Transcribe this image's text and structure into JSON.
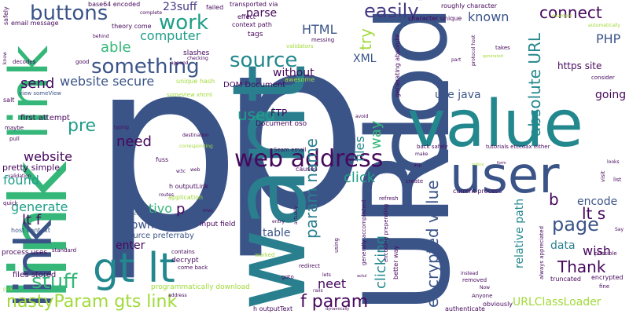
{
  "words": {
    "p": "p",
    "want": "want",
    "code": "code",
    "link": "link",
    "url": "URL",
    "value": "value",
    "user": "user",
    "gt_lt": "gt lt",
    "web_address": "web address",
    "source": "source",
    "something": "something",
    "buttons": "buttons",
    "work": "work",
    "easily": "easily",
    "connect": "connect",
    "stuff": "stuff",
    "able": "able",
    "computer": "computer",
    "suff23": "23suff",
    "absolute_url": "absolute URL",
    "encrypted_value": "encrypted value",
    "param_name": "param name",
    "clicking": "clicking",
    "page": "page",
    "thank": "Thank",
    "nasty_param": "nastyParam gts link",
    "f_param": "f param",
    "html": "HTML",
    "php": "PHP",
    "xml": "XML",
    "try": "try",
    "known": "known",
    "website_secure": "website secure",
    "send": "send",
    "pre": "pre",
    "need": "need",
    "website": "website",
    "found": "found",
    "generate": "generate",
    "lt_f": "lt f",
    "used": "used",
    "ftp": "FTP",
    "click": "click",
    "way": "way",
    "files": "files",
    "info": "info",
    "tivo": "tivo",
    "download": "download",
    "table": "table",
    "enter": "enter",
    "neet": "neet",
    "b": "b",
    "encode": "encode",
    "lt_s": "lt s",
    "wish": "wish",
    "data": "data",
    "relative_path": "relative path",
    "urlclassloader": "URLClassLoader",
    "going": "going",
    "use_java": "use java",
    "without": "without",
    "parse": "parse",
    "https_site": "https site",
    "pretty_simple": "pretty simple",
    "source_preferraby": "source preferraby",
    "first_attempt": "first attempt",
    "files_stored": "files stored",
    "process_uses": "process uses",
    "host_context": "host context",
    "programmatically_download": "programmatically download",
    "input_field": "input field",
    "decrypt": "decrypt",
    "dom_document": "DOM Document",
    "document_oso": "Document oso",
    "slashes": "slashes",
    "tags": "tags",
    "base64_encoded": "base64 encoded",
    "transported_via": "transported via",
    "failed": "failed",
    "roughly_character": "roughly character",
    "character_unique": "character unique",
    "email_message": "email message",
    "theory_come": "theory come",
    "context_path": "context path",
    "generating_absolute": "generating absolute",
    "unique_hash": "unique hash",
    "awesome": "awesome",
    "effect": "effect",
    "validators": "validators",
    "messing": "messing",
    "view_someview": "view someView",
    "someview_xhtml": "someView xhtml",
    "h_outputlink": "h outputLink",
    "h_outputtext": "h outputText",
    "application": "application",
    "jsf": "JavaScript",
    "seam_email": "Seam email",
    "causes": "causes",
    "create": "create",
    "refresh": "refresh",
    "back_safely": "back safely",
    "tutorials": "tutorials etccoax either",
    "current_process": "current process",
    "generally_accomplished": "generally accomplished",
    "encoding_prepending": "encoding prepending",
    "better_way": "better way",
    "always_appreciated": "always appreciated",
    "possible": "possible",
    "truncated": "truncated",
    "encrypted": "encrypted",
    "obviously": "obviously",
    "authenticate": "authenticate",
    "removed": "removed",
    "come_back": "come back",
    "worked": "worked",
    "contains": "contains",
    "redirect": "redirect",
    "goto": "goto",
    "using": "using",
    "salt": "salt",
    "maybe": "maybe",
    "pull": "pull",
    "quick": "quick",
    "standard": "standard",
    "safely": "safely",
    "know": "know",
    "decodes": "decodes",
    "good": "good",
    "behind": "behind",
    "complete": "complete",
    "checking": "checking",
    "typing": "typing",
    "destination": "destination",
    "corresponding": "corresponding",
    "fuss": "fuss",
    "validation": "validation",
    "routes": "routes",
    "mvc": "mvc",
    "entry": "entry",
    "actually": "actually",
    "lets": "lets",
    "rails": "rails",
    "anyone": "Anyone",
    "now": "Now",
    "instead": "instead",
    "fine": "fine",
    "say": "Say",
    "list": "list",
    "visit": "visit",
    "looks": "looks",
    "consider": "consider",
    "takes": "takes",
    "example": "example",
    "automatically": "automatically",
    "protocol_host": "protocol host",
    "part": "part",
    "generated": "generated",
    "asp": "asp",
    "make": "make",
    "avoid": "avoid",
    "append": "append",
    "form": "form",
    "w3c": "w3c",
    "web": "web",
    "address": "address",
    "pick": "pick",
    "actul": "actul",
    "dynamically": "dynamically",
    "notice": "notice"
  },
  "colors": {
    "dark_blue": "#3b5488",
    "teal": "#2a7f8f",
    "teal2": "#23888e",
    "green": "#35b779",
    "purple": "#46085c",
    "yellow_green": "#a0da39",
    "sea_green": "#1f9e89",
    "indigo": "#443983",
    "yellow": "#d8e219",
    "background": "#ffffff"
  }
}
